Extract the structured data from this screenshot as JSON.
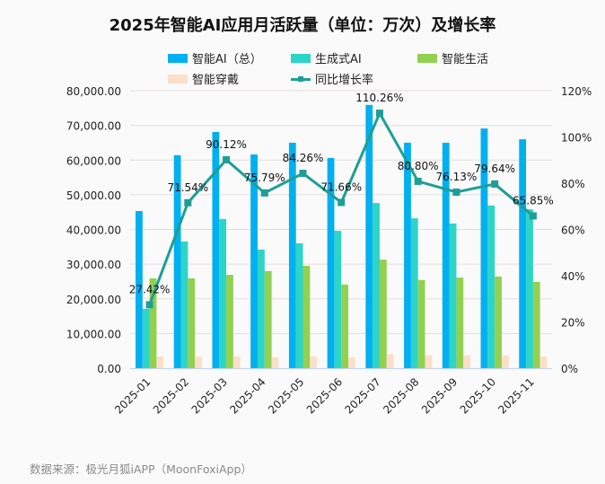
{
  "chart_data": {
    "type": "bar",
    "title": "2025年智能AI应用月活跃量（单位：万次）及增长率",
    "categories": [
      "2025-01",
      "2025-02",
      "2025-03",
      "2025-04",
      "2025-05",
      "2025-06",
      "2025-07",
      "2025-08",
      "2025-09",
      "2025-10",
      "2025-11"
    ],
    "series": [
      {
        "name": "智能AI（总）",
        "kind": "bar",
        "axis": "left",
        "color": "#00B0F0",
        "values": [
          45300,
          61400,
          68100,
          61600,
          65000,
          60600,
          75900,
          65000,
          65000,
          69100,
          66000
        ]
      },
      {
        "name": "生成式AI",
        "kind": "bar",
        "axis": "left",
        "color": "#2DD4C8",
        "values": [
          17100,
          36500,
          43000,
          34200,
          36000,
          39600,
          47600,
          43200,
          41700,
          46900,
          45800
        ]
      },
      {
        "name": "智能生活",
        "kind": "bar",
        "axis": "left",
        "color": "#92D050",
        "values": [
          25900,
          25900,
          26900,
          28000,
          29500,
          24100,
          31300,
          25400,
          26100,
          26400,
          24900
        ]
      },
      {
        "name": "智能穿戴",
        "kind": "bar",
        "axis": "left",
        "color": "#FDDEC8",
        "values": [
          3400,
          3400,
          3400,
          3100,
          3400,
          3100,
          4100,
          3700,
          3700,
          3700,
          3400
        ]
      },
      {
        "name": "同比增长率",
        "kind": "line",
        "axis": "right",
        "color": "#1E9E96",
        "values": [
          27.42,
          71.54,
          90.12,
          75.79,
          84.26,
          71.66,
          110.26,
          80.8,
          76.13,
          79.64,
          65.85
        ],
        "labels": [
          "27.42%",
          "71.54%",
          "90.12%",
          "75.79%",
          "84.26%",
          "71.66%",
          "110.26%",
          "80.80%",
          "76.13%",
          "79.64%",
          "65.85%"
        ]
      }
    ],
    "y_left": {
      "range": [
        0,
        80000
      ],
      "ticks": [
        "0.00",
        "10,000.00",
        "20,000.00",
        "30,000.00",
        "40,000.00",
        "50,000.00",
        "60,000.00",
        "70,000.00",
        "80,000.00"
      ],
      "tick_values": [
        0,
        10000,
        20000,
        30000,
        40000,
        50000,
        60000,
        70000,
        80000
      ]
    },
    "y_right": {
      "range": [
        0,
        120
      ],
      "ticks": [
        "0%",
        "20%",
        "40%",
        "60%",
        "80%",
        "100%",
        "120%"
      ],
      "tick_values": [
        0,
        20,
        40,
        60,
        80,
        100,
        120
      ]
    },
    "grid": true,
    "legend_position": "top-center",
    "xlabel": "",
    "ylabel": ""
  },
  "legend": {
    "items": [
      "智能AI（总）",
      "生成式AI",
      "智能生活",
      "智能穿戴",
      "同比增长率"
    ]
  },
  "footer": {
    "source": "数据来源：极光月狐iAPP（MoonFoxiApp）"
  }
}
